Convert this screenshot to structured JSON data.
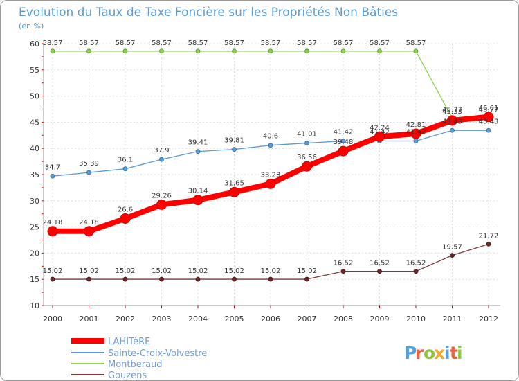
{
  "chart_data": {
    "type": "line",
    "title": "Evolution du Taux de Taxe Foncière sur les Propriétés Non Bâties",
    "subtitle": "(en %)",
    "x": [
      "2000",
      "2001",
      "2002",
      "2003",
      "2004",
      "2005",
      "2006",
      "2007",
      "2008",
      "2009",
      "2010",
      "2011",
      "2012"
    ],
    "ylim": [
      10,
      60
    ],
    "yticks": [
      10,
      15,
      20,
      25,
      30,
      35,
      40,
      45,
      50,
      55,
      60
    ],
    "grid": true,
    "legend_position": "bottom-left",
    "series": [
      {
        "name": "LAHITèRE",
        "color": "#ff0000",
        "values": [
          24.18,
          24.18,
          26.6,
          29.26,
          30.14,
          31.65,
          33.23,
          36.56,
          39.48,
          42.24,
          42.81,
          45.33,
          46.01
        ],
        "labels": [
          "24.18",
          "24.18",
          "26.6",
          "29.26",
          "30.14",
          "31.65",
          "33.23",
          "36.56",
          "39.48",
          "42.24",
          "42.81",
          "45.33",
          "46.01"
        ]
      },
      {
        "name": "Sainte-Croix-Volvestre",
        "color": "#5b9bd5",
        "values": [
          34.7,
          35.39,
          36.1,
          37.9,
          39.41,
          39.81,
          40.6,
          41.01,
          41.42,
          41.42,
          41.42,
          43.43,
          43.43
        ],
        "labels": [
          "34.7",
          "35.39",
          "36.1",
          "37.9",
          "39.41",
          "39.81",
          "40.6",
          "41.01",
          "41.42",
          "41.42",
          "41.42",
          "43.43",
          "43.43"
        ]
      },
      {
        "name": "Montberaud",
        "color": "#8fd14f",
        "values": [
          58.57,
          58.57,
          58.57,
          58.57,
          58.57,
          58.57,
          58.57,
          58.57,
          58.57,
          58.57,
          58.57,
          45.77,
          45.77
        ],
        "labels": [
          "58.57",
          "58.57",
          "58.57",
          "58.57",
          "58.57",
          "58.57",
          "58.57",
          "58.57",
          "58.57",
          "58.57",
          "58.57",
          "45.77",
          "45.77"
        ]
      },
      {
        "name": "Gouzens",
        "color": "#7b3b3b",
        "values": [
          15.02,
          15.02,
          15.02,
          15.02,
          15.02,
          15.02,
          15.02,
          15.02,
          16.52,
          16.52,
          16.52,
          19.57,
          21.72
        ],
        "labels": [
          "15.02",
          "15.02",
          "15.02",
          "15.02",
          "15.02",
          "15.02",
          "15.02",
          "15.02",
          "16.52",
          "16.52",
          "16.52",
          "19.57",
          "21.72"
        ]
      }
    ]
  },
  "logo": {
    "text": "Proxiti",
    "letters": [
      "P",
      "r",
      "o",
      "x",
      "i",
      "t",
      "i"
    ],
    "colors": [
      "#5aa0d8",
      "#e8603c",
      "#8cc63f",
      "#f0a830",
      "#5aa0d8",
      "#e8603c",
      "#8cc63f"
    ]
  }
}
